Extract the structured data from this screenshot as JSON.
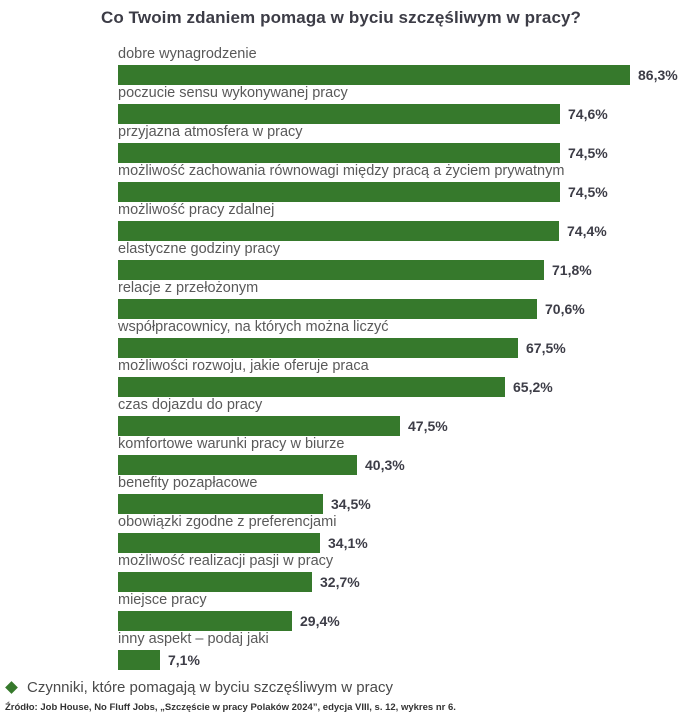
{
  "title": "Co Twoim zdaniem pomaga w byciu szczęśliwym w pracy?",
  "legend": {
    "marker": "diamond-icon",
    "label": "Czynniki, które pomagają w byciu szczęśliwym w pracy"
  },
  "source": "Źródło: Job House, No Fluff Jobs, „Szczęście w pracy Polaków 2024”, edycja VIII, s. 12, wykres nr 6.",
  "colors": {
    "bar": "#36792c",
    "title": "#3c3c46",
    "category_label": "#595959",
    "value_label": "#3d3d47",
    "legend_text": "#4a4a4a",
    "source_text": "#333333",
    "background": "#ffffff"
  },
  "chart_data": {
    "type": "bar",
    "orientation": "horizontal",
    "title": "Co Twoim zdaniem pomaga w byciu szczęśliwym w pracy?",
    "xlabel": "",
    "ylabel": "",
    "xlim": [
      0,
      100
    ],
    "grid": false,
    "legend_position": "bottom-left",
    "legend_entries": [
      "Czynniki, które pomagają w byciu szczęśliwym w pracy"
    ],
    "categories": [
      "dobre wynagrodzenie",
      "poczucie sensu wykonywanej pracy",
      "przyjazna atmosfera w pracy",
      "możliwość zachowania równowagi między pracą a życiem prywatnym",
      "możliwość pracy zdalnej",
      "elastyczne godziny pracy",
      "relacje z przełożonym",
      "współpracownicy, na których można liczyć",
      "możliwości rozwoju, jakie oferuje praca",
      "czas dojazdu do pracy",
      "komfortowe warunki pracy w biurze",
      "benefity pozapłacowe",
      "obowiązki zgodne z preferencjami",
      "możliwość realizacji pasji w pracy",
      "miejsce pracy",
      "inny aspekt – podaj jaki"
    ],
    "values": [
      86.3,
      74.6,
      74.5,
      74.5,
      74.4,
      71.8,
      70.6,
      67.5,
      65.2,
      47.5,
      40.3,
      34.5,
      34.1,
      32.7,
      29.4,
      7.1
    ],
    "value_labels": [
      "86,3%",
      "74,6%",
      "74,5%",
      "74,5%",
      "74,4%",
      "71,8%",
      "70,6%",
      "67,5%",
      "65,2%",
      "47,5%",
      "40,3%",
      "34,5%",
      "34,1%",
      "32,7%",
      "29,4%",
      "7,1%"
    ]
  }
}
